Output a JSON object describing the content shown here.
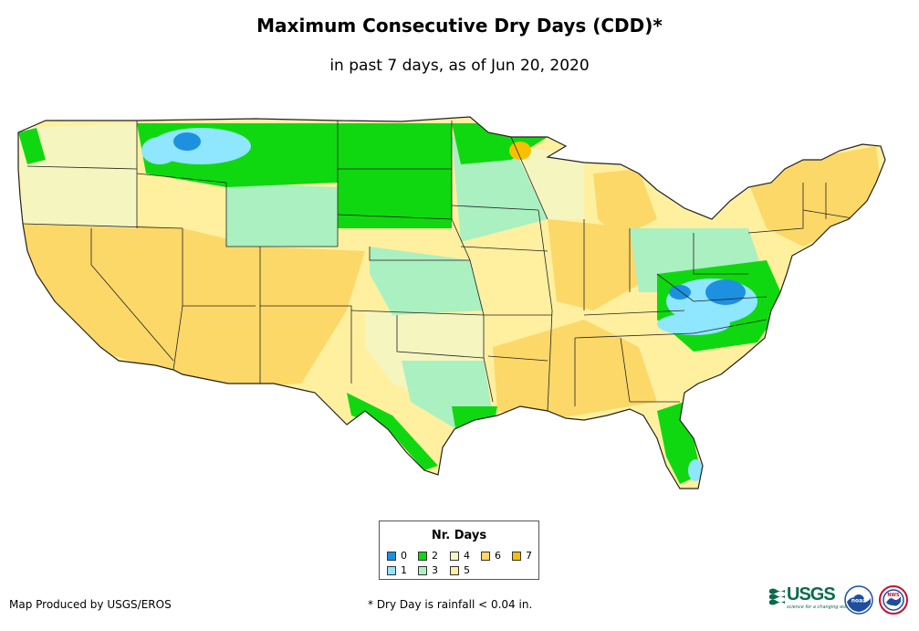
{
  "title": "Maximum Consecutive Dry Days (CDD)*",
  "subtitle": "in past 7 days, as of Jun 20, 2020",
  "legend": {
    "title": "Nr. Days",
    "items": [
      {
        "label": "0",
        "color": "#1e90e0"
      },
      {
        "label": "1",
        "color": "#8ee6ff"
      },
      {
        "label": "2",
        "color": "#10d810"
      },
      {
        "label": "3",
        "color": "#aaf0c0"
      },
      {
        "label": "4",
        "color": "#f5f5c0"
      },
      {
        "label": "5",
        "color": "#fff0a0"
      },
      {
        "label": "6",
        "color": "#fcd868"
      },
      {
        "label": "7",
        "color": "#f8c000"
      }
    ]
  },
  "footer": {
    "credit": "Map Produced by USGS/EROS",
    "note": "* Dry Day is rainfall < 0.04 in."
  },
  "logos": {
    "usgs_word": "USGS",
    "usgs_tagline": "science for a changing world",
    "noaa_word": "noaa",
    "nws_word": "NWS"
  },
  "colors": {
    "border": "#222222",
    "usgs_green": "#0a6b4a",
    "noaa_blue": "#1f4e9c"
  }
}
